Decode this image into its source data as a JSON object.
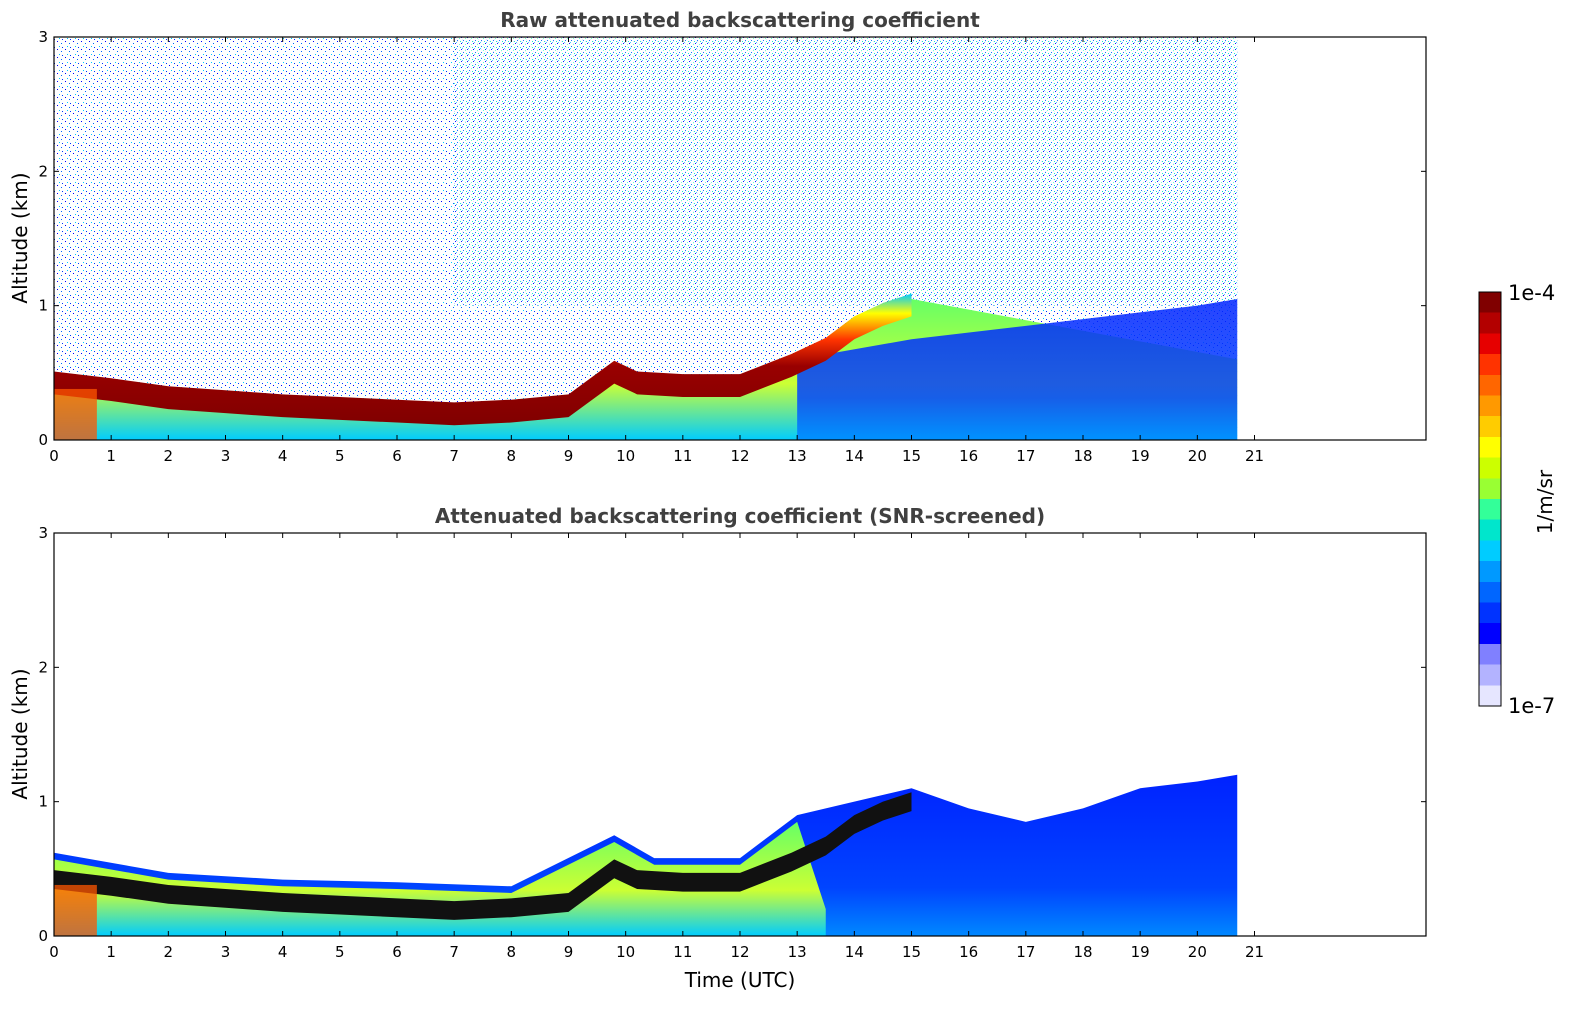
{
  "chart_data": [
    {
      "type": "heatmap",
      "title": "Raw attenuated backscattering coefficient",
      "xlabel": "",
      "ylabel": "Altitude (km)",
      "xlim": [
        0,
        24
      ],
      "ylim": [
        0,
        3
      ],
      "x_ticks": [
        0,
        1,
        2,
        3,
        4,
        5,
        6,
        7,
        8,
        9,
        10,
        11,
        12,
        13,
        14,
        15,
        16,
        17,
        18,
        19,
        20,
        21
      ],
      "y_ticks": [
        0,
        1,
        2,
        3
      ],
      "data_end_time": 20.7,
      "boundary_layer_top_km": [
        {
          "t": 0,
          "h": 0.47
        },
        {
          "t": 1,
          "h": 0.42
        },
        {
          "t": 2,
          "h": 0.36
        },
        {
          "t": 3,
          "h": 0.33
        },
        {
          "t": 4,
          "h": 0.3
        },
        {
          "t": 5,
          "h": 0.28
        },
        {
          "t": 6,
          "h": 0.26
        },
        {
          "t": 7,
          "h": 0.24
        },
        {
          "t": 8,
          "h": 0.26
        },
        {
          "t": 9,
          "h": 0.3
        },
        {
          "t": 9.8,
          "h": 0.55
        },
        {
          "t": 10.2,
          "h": 0.47
        },
        {
          "t": 11,
          "h": 0.45
        },
        {
          "t": 12,
          "h": 0.45
        },
        {
          "t": 12.9,
          "h": 0.6
        },
        {
          "t": 13.5,
          "h": 0.72
        },
        {
          "t": 14,
          "h": 0.88
        },
        {
          "t": 14.5,
          "h": 0.98
        },
        {
          "t": 15,
          "h": 1.05
        }
      ],
      "description_of_regions": [
        "noise above layer",
        "aerosol layer",
        "near-surface high backscatter"
      ]
    },
    {
      "type": "heatmap",
      "title": "Attenuated backscattering coefficient (SNR-screened)",
      "xlabel": "Time (UTC)",
      "ylabel": "Altitude (km)",
      "xlim": [
        0,
        24
      ],
      "ylim": [
        0,
        3
      ],
      "x_ticks": [
        0,
        1,
        2,
        3,
        4,
        5,
        6,
        7,
        8,
        9,
        10,
        11,
        12,
        13,
        14,
        15,
        16,
        17,
        18,
        19,
        20,
        21
      ],
      "y_ticks": [
        0,
        1,
        2,
        3
      ],
      "data_end_time": 20.7,
      "screened_top_km": [
        {
          "t": 0,
          "h": 0.62
        },
        {
          "t": 2,
          "h": 0.47
        },
        {
          "t": 4,
          "h": 0.42
        },
        {
          "t": 6,
          "h": 0.4
        },
        {
          "t": 8,
          "h": 0.37
        },
        {
          "t": 9.8,
          "h": 0.75
        },
        {
          "t": 10.5,
          "h": 0.58
        },
        {
          "t": 12,
          "h": 0.58
        },
        {
          "t": 13,
          "h": 0.9
        },
        {
          "t": 14,
          "h": 1.0
        },
        {
          "t": 15,
          "h": 1.1
        },
        {
          "t": 16,
          "h": 0.95
        },
        {
          "t": 17,
          "h": 0.85
        },
        {
          "t": 18,
          "h": 0.95
        },
        {
          "t": 19,
          "h": 1.1
        },
        {
          "t": 20,
          "h": 1.15
        },
        {
          "t": 20.7,
          "h": 1.2
        }
      ]
    }
  ],
  "colorbar": {
    "label": "1/m/sr",
    "max_label": "1e-4",
    "min_label": "1e-7",
    "colors": [
      "#e6e6ff",
      "#b3b3ff",
      "#8080ff",
      "#0000ff",
      "#0033ff",
      "#0066ff",
      "#0099ff",
      "#00ccff",
      "#00e6cc",
      "#33ff99",
      "#99ff33",
      "#ccff00",
      "#ffff00",
      "#ffcc00",
      "#ff9900",
      "#ff6600",
      "#ff3300",
      "#e60000",
      "#b30000",
      "#800000"
    ]
  }
}
